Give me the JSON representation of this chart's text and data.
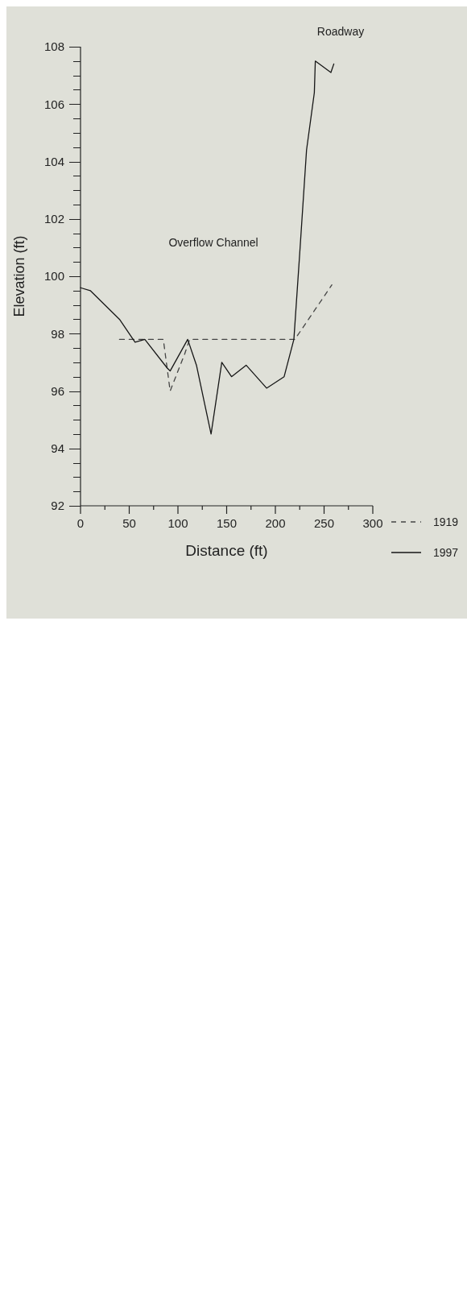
{
  "chart_data": {
    "type": "line",
    "xlabel": "Distance (ft)",
    "ylabel": "Elevation (ft)",
    "xlim": [
      0,
      300
    ],
    "ylim": [
      92,
      108
    ],
    "xticks": [
      0,
      {
        "value": 25,
        "label": null
      },
      50,
      {
        "value": 75,
        "label": null
      },
      100,
      {
        "value": 125,
        "label": null
      },
      150,
      {
        "value": 175,
        "label": null
      },
      200,
      {
        "value": 225,
        "label": null
      },
      250,
      {
        "value": 275,
        "label": null
      },
      300
    ],
    "yticks": [
      92,
      {
        "value": 92.5,
        "label": null
      },
      {
        "value": 93,
        "label": null
      },
      {
        "value": 93.5,
        "label": null
      },
      94,
      {
        "value": 94.5,
        "label": null
      },
      {
        "value": 95,
        "label": null
      },
      {
        "value": 95.5,
        "label": null
      },
      96,
      {
        "value": 96.5,
        "label": null
      },
      {
        "value": 97,
        "label": null
      },
      {
        "value": 97.5,
        "label": null
      },
      98,
      {
        "value": 98.5,
        "label": null
      },
      {
        "value": 99,
        "label": null
      },
      {
        "value": 99.5,
        "label": null
      },
      100,
      {
        "value": 100.5,
        "label": null
      },
      {
        "value": 101,
        "label": null
      },
      {
        "value": 101.5,
        "label": null
      },
      102,
      {
        "value": 102.5,
        "label": null
      },
      {
        "value": 103,
        "label": null
      },
      {
        "value": 103.5,
        "label": null
      },
      104,
      {
        "value": 104.5,
        "label": null
      },
      {
        "value": 105,
        "label": null
      },
      {
        "value": 105.5,
        "label": null
      },
      106,
      {
        "value": 106.5,
        "label": null
      },
      {
        "value": 107,
        "label": null
      },
      {
        "value": 107.5,
        "label": null
      },
      108
    ],
    "series": [
      {
        "name": "1919",
        "color": "#444444",
        "line_style": "dashed",
        "x": [
          40,
          85,
          92,
          107,
          112,
          220,
          258
        ],
        "values": [
          97.8,
          97.8,
          96.0,
          97.3,
          97.8,
          97.8,
          99.7
        ]
      },
      {
        "name": "1997",
        "color": "#161616",
        "line_style": "solid",
        "x": [
          0,
          10,
          40,
          54,
          56,
          66,
          89,
          92,
          110,
          119,
          134,
          145,
          155,
          170,
          191,
          209,
          219,
          225,
          232,
          240,
          241,
          257,
          260
        ],
        "values": [
          99.6,
          99.5,
          98.5,
          97.8,
          97.7,
          97.8,
          96.8,
          96.7,
          97.8,
          96.9,
          94.5,
          97.0,
          96.5,
          96.9,
          96.1,
          96.5,
          97.8,
          100.8,
          104.4,
          106.4,
          107.5,
          107.1,
          107.4
        ]
      }
    ],
    "annotations": [
      "Overflow Channel",
      "Roadway"
    ],
    "legend": "bottom right",
    "grid": false,
    "marker": "none"
  }
}
